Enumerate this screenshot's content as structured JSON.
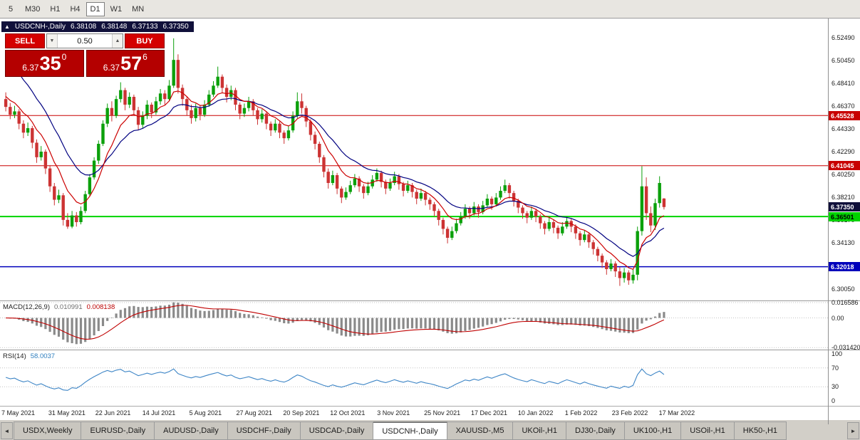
{
  "colors": {
    "candle_up": "#0ba00b",
    "candle_down": "#cc3333",
    "ma_fast": "#cc0000",
    "ma_slow": "#000080",
    "macd_hist": "#8a8a8a",
    "macd_signal": "#c00000",
    "rsi_line": "#3d85c6",
    "hline_red": "#c80000",
    "hline_green": "#00d400",
    "hline_blue": "#0000bb"
  },
  "timeframe_bar": {
    "buttons": [
      "5",
      "M30",
      "H1",
      "H4",
      "D1",
      "W1",
      "MN"
    ],
    "active": "D1"
  },
  "chart_header": {
    "symbol": "USDCNH-,Daily",
    "open": "6.38108",
    "high": "6.38148",
    "low": "6.37133",
    "close": "6.37350"
  },
  "trade_panel": {
    "sell_label": "SELL",
    "buy_label": "BUY",
    "volume": "0.50",
    "bid": {
      "big_figure": "6.37",
      "pips": "35",
      "point": "0"
    },
    "ask": {
      "big_figure": "6.37",
      "pips": "57",
      "point": "6"
    }
  },
  "price_axis": {
    "labels": [
      "6.52490",
      "6.50450",
      "6.48410",
      "6.46370",
      "6.44330",
      "6.42290",
      "6.40250",
      "6.38210",
      "6.36170",
      "6.34130",
      "6.32090",
      "6.30050"
    ],
    "tags": [
      {
        "text": "6.45528",
        "price": 6.45528,
        "bg": "#c80000",
        "fg": "#ffffff"
      },
      {
        "text": "6.41045",
        "price": 6.41045,
        "bg": "#c80000",
        "fg": "#ffffff"
      },
      {
        "text": "6.37350",
        "price": 6.3735,
        "bg": "#10103a",
        "fg": "#ffffff"
      },
      {
        "text": "6.36501",
        "price": 6.36501,
        "bg": "#00d400",
        "fg": "#000000"
      },
      {
        "text": "6.32018",
        "price": 6.32018,
        "bg": "#0000bb",
        "fg": "#ffffff"
      }
    ]
  },
  "hlines": [
    {
      "price": 6.45528,
      "color": "#c80000",
      "width": 1
    },
    {
      "price": 6.41045,
      "color": "#c80000",
      "width": 1
    },
    {
      "price": 6.36501,
      "color": "#00d400",
      "width": 2
    },
    {
      "price": 6.32018,
      "color": "#0000bb",
      "width": 1.5
    }
  ],
  "macd_panel": {
    "label": "MACD(12,26,9)",
    "value_main": "0.010991",
    "value_signal": "0.008138",
    "scale_max": 0.0166,
    "scale_min": -0.0314,
    "axis_labels": [
      {
        "text": "0.016586",
        "value": 0.0152
      },
      {
        "text": "0.00",
        "value": 0
      },
      {
        "text": "-0.031420",
        "value": -0.0295
      }
    ]
  },
  "rsi_panel": {
    "label": "RSI(14)",
    "value": "58.0037",
    "axis_labels": [
      {
        "text": "100",
        "value": 100
      },
      {
        "text": "70",
        "value": 70
      },
      {
        "text": "30",
        "value": 30
      },
      {
        "text": "0",
        "value": 0
      }
    ],
    "levels": [
      30,
      70
    ]
  },
  "date_axis": {
    "labels": [
      "7 May 2021",
      "31 May 2021",
      "22 Jun 2021",
      "14 Jul 2021",
      "5 Aug 2021",
      "27 Aug 2021",
      "20 Sep 2021",
      "12 Oct 2021",
      "3 Nov 2021",
      "25 Nov 2021",
      "17 Dec 2021",
      "10 Jan 2022",
      "1 Feb 2022",
      "23 Feb 2022",
      "17 Mar 2022"
    ]
  },
  "tab_bar": {
    "left_arrow": "◄",
    "right_arrow": "►",
    "active": "USDCNH-,Daily",
    "tabs": [
      "USDX,Weekly",
      "EURUSD-,Daily",
      "AUDUSD-,Daily",
      "USDCHF-,Daily",
      "USDCAD-,Daily",
      "USDCNH-,Daily",
      "XAUUSD-,M5",
      "UKOil-,H1",
      "DJ30-,Daily",
      "UK100-,H1",
      "USOil-,H1",
      "HK50-,H1"
    ]
  },
  "chart_data": {
    "type": "candlestick",
    "symbol": "USDCNH-",
    "timeframe": "Daily",
    "visible_range": [
      "7 May 2021",
      "17 Mar 2022"
    ],
    "price_scale": {
      "min": 6.29,
      "max": 6.542
    },
    "candles": [
      [
        6.47,
        6.476,
        6.459,
        6.463
      ],
      [
        6.463,
        6.4665,
        6.452,
        6.456
      ],
      [
        6.456,
        6.464,
        6.453,
        6.459
      ],
      [
        6.459,
        6.461,
        6.443,
        6.448
      ],
      [
        6.448,
        6.451,
        6.435,
        6.44
      ],
      [
        6.44,
        6.449,
        6.437,
        6.444
      ],
      [
        6.444,
        6.446,
        6.426,
        6.431
      ],
      [
        6.431,
        6.434,
        6.413,
        6.418
      ],
      [
        6.418,
        6.428,
        6.415,
        6.423
      ],
      [
        6.423,
        6.425,
        6.403,
        6.408
      ],
      [
        6.408,
        6.411,
        6.387,
        6.392
      ],
      [
        6.392,
        6.395,
        6.375,
        6.38
      ],
      [
        6.38,
        6.389,
        6.377,
        6.384
      ],
      [
        6.384,
        6.386,
        6.357,
        6.362
      ],
      [
        6.362,
        6.368,
        6.354,
        6.356
      ],
      [
        6.356,
        6.37,
        6.3545,
        6.366
      ],
      [
        6.366,
        6.369,
        6.356,
        6.36
      ],
      [
        6.36,
        6.374,
        6.358,
        6.37
      ],
      [
        6.37,
        6.388,
        6.368,
        6.385
      ],
      [
        6.385,
        6.403,
        6.383,
        6.4
      ],
      [
        6.4,
        6.418,
        6.398,
        6.415
      ],
      [
        6.415,
        6.433,
        6.412,
        6.43
      ],
      [
        6.43,
        6.451,
        6.428,
        6.448
      ],
      [
        6.448,
        6.466,
        6.445,
        6.462
      ],
      [
        6.462,
        6.468,
        6.45,
        6.455
      ],
      [
        6.455,
        6.473,
        6.453,
        6.47
      ],
      [
        6.47,
        6.485,
        6.467,
        6.478
      ],
      [
        6.478,
        6.48,
        6.46,
        6.465
      ],
      [
        6.465,
        6.476,
        6.462,
        6.472
      ],
      [
        6.472,
        6.474,
        6.455,
        6.46
      ],
      [
        6.46,
        6.463,
        6.442,
        6.447
      ],
      [
        6.447,
        6.459,
        6.444,
        6.455
      ],
      [
        6.455,
        6.469,
        6.452,
        6.465
      ],
      [
        6.465,
        6.467,
        6.453,
        6.458
      ],
      [
        6.458,
        6.472,
        6.456,
        6.468
      ],
      [
        6.468,
        6.479,
        6.465,
        6.475
      ],
      [
        6.475,
        6.478,
        6.465,
        6.47
      ],
      [
        6.47,
        6.487,
        6.468,
        6.482
      ],
      [
        6.482,
        6.5243,
        6.48,
        6.505
      ],
      [
        6.505,
        6.51,
        6.475,
        6.48
      ],
      [
        6.48,
        6.483,
        6.464,
        6.47
      ],
      [
        6.47,
        6.472,
        6.455,
        6.46
      ],
      [
        6.46,
        6.465,
        6.448,
        6.453
      ],
      [
        6.453,
        6.466,
        6.45,
        6.462
      ],
      [
        6.462,
        6.464,
        6.451,
        6.456
      ],
      [
        6.456,
        6.469,
        6.454,
        6.465
      ],
      [
        6.465,
        6.478,
        6.463,
        6.474
      ],
      [
        6.474,
        6.486,
        6.472,
        6.482
      ],
      [
        6.482,
        6.499,
        6.48,
        6.49
      ],
      [
        6.49,
        6.492,
        6.475,
        6.48
      ],
      [
        6.48,
        6.483,
        6.467,
        6.472
      ],
      [
        6.472,
        6.482,
        6.469,
        6.478
      ],
      [
        6.478,
        6.48,
        6.46,
        6.465
      ],
      [
        6.465,
        6.467,
        6.452,
        6.457
      ],
      [
        6.457,
        6.466,
        6.454,
        6.462
      ],
      [
        6.462,
        6.472,
        6.459,
        6.468
      ],
      [
        6.468,
        6.47,
        6.455,
        6.46
      ],
      [
        6.46,
        6.462,
        6.447,
        6.452
      ],
      [
        6.452,
        6.461,
        6.449,
        6.457
      ],
      [
        6.457,
        6.459,
        6.443,
        6.448
      ],
      [
        6.448,
        6.45,
        6.437,
        6.442
      ],
      [
        6.442,
        6.452,
        6.44,
        6.448
      ],
      [
        6.448,
        6.45,
        6.435,
        6.44
      ],
      [
        6.44,
        6.442,
        6.43,
        6.435
      ],
      [
        6.435,
        6.446,
        6.433,
        6.442
      ],
      [
        6.442,
        6.459,
        6.44,
        6.455
      ],
      [
        6.455,
        6.476,
        6.453,
        6.468
      ],
      [
        6.468,
        6.475,
        6.457,
        6.462
      ],
      [
        6.462,
        6.464,
        6.445,
        6.45
      ],
      [
        6.45,
        6.452,
        6.433,
        6.438
      ],
      [
        6.438,
        6.441,
        6.425,
        6.43
      ],
      [
        6.43,
        6.432,
        6.413,
        6.418
      ],
      [
        6.418,
        6.42,
        6.4,
        6.405
      ],
      [
        6.405,
        6.408,
        6.39,
        6.395
      ],
      [
        6.395,
        6.406,
        6.393,
        6.402
      ],
      [
        6.402,
        6.404,
        6.385,
        6.39
      ],
      [
        6.39,
        6.392,
        6.377,
        6.382
      ],
      [
        6.382,
        6.391,
        6.38,
        6.387
      ],
      [
        6.387,
        6.397,
        6.385,
        6.393
      ],
      [
        6.393,
        6.403,
        6.391,
        6.399
      ],
      [
        6.399,
        6.401,
        6.387,
        6.392
      ],
      [
        6.392,
        6.394,
        6.381,
        6.386
      ],
      [
        6.386,
        6.396,
        6.384,
        6.392
      ],
      [
        6.392,
        6.402,
        6.39,
        6.398
      ],
      [
        6.398,
        6.408,
        6.396,
        6.404
      ],
      [
        6.404,
        6.406,
        6.391,
        6.396
      ],
      [
        6.396,
        6.398,
        6.385,
        6.39
      ],
      [
        6.39,
        6.399,
        6.388,
        6.395
      ],
      [
        6.395,
        6.405,
        6.393,
        6.401
      ],
      [
        6.401,
        6.403,
        6.389,
        6.394
      ],
      [
        6.394,
        6.396,
        6.383,
        6.388
      ],
      [
        6.388,
        6.397,
        6.386,
        6.393
      ],
      [
        6.393,
        6.395,
        6.382,
        6.387
      ],
      [
        6.387,
        6.389,
        6.376,
        6.381
      ],
      [
        6.381,
        6.39,
        6.379,
        6.386
      ],
      [
        6.386,
        6.388,
        6.375,
        6.38
      ],
      [
        6.38,
        6.382,
        6.371,
        6.376
      ],
      [
        6.376,
        6.378,
        6.365,
        6.37
      ],
      [
        6.37,
        6.372,
        6.357,
        6.362
      ],
      [
        6.362,
        6.364,
        6.349,
        6.354
      ],
      [
        6.354,
        6.356,
        6.341,
        6.346
      ],
      [
        6.346,
        6.356,
        6.344,
        6.352
      ],
      [
        6.352,
        6.363,
        6.35,
        6.359
      ],
      [
        6.359,
        6.369,
        6.357,
        6.365
      ],
      [
        6.365,
        6.376,
        6.363,
        6.372
      ],
      [
        6.372,
        6.374,
        6.363,
        6.368
      ],
      [
        6.368,
        6.378,
        6.366,
        6.374
      ],
      [
        6.374,
        6.376,
        6.364,
        6.369
      ],
      [
        6.369,
        6.379,
        6.367,
        6.375
      ],
      [
        6.375,
        6.385,
        6.373,
        6.381
      ],
      [
        6.381,
        6.383,
        6.371,
        6.376
      ],
      [
        6.376,
        6.386,
        6.374,
        6.382
      ],
      [
        6.382,
        6.392,
        6.38,
        6.388
      ],
      [
        6.388,
        6.398,
        6.386,
        6.393
      ],
      [
        6.393,
        6.395,
        6.381,
        6.386
      ],
      [
        6.386,
        6.388,
        6.374,
        6.379
      ],
      [
        6.379,
        6.381,
        6.368,
        6.373
      ],
      [
        6.373,
        6.375,
        6.363,
        6.368
      ],
      [
        6.368,
        6.37,
        6.359,
        6.364
      ],
      [
        6.364,
        6.374,
        6.362,
        6.37
      ],
      [
        6.37,
        6.372,
        6.36,
        6.365
      ],
      [
        6.365,
        6.367,
        6.354,
        6.359
      ],
      [
        6.359,
        6.361,
        6.349,
        6.354
      ],
      [
        6.354,
        6.364,
        6.352,
        6.36
      ],
      [
        6.36,
        6.362,
        6.35,
        6.355
      ],
      [
        6.355,
        6.357,
        6.345,
        6.35
      ],
      [
        6.35,
        6.36,
        6.348,
        6.356
      ],
      [
        6.356,
        6.365,
        6.354,
        6.361
      ],
      [
        6.361,
        6.363,
        6.351,
        6.356
      ],
      [
        6.356,
        6.358,
        6.345,
        6.35
      ],
      [
        6.35,
        6.352,
        6.339,
        6.344
      ],
      [
        6.344,
        6.353,
        6.342,
        6.349
      ],
      [
        6.349,
        6.351,
        6.337,
        6.342
      ],
      [
        6.342,
        6.344,
        6.331,
        6.336
      ],
      [
        6.336,
        6.338,
        6.325,
        6.33
      ],
      [
        6.33,
        6.332,
        6.319,
        6.324
      ],
      [
        6.324,
        6.326,
        6.313,
        6.318
      ],
      [
        6.318,
        6.327,
        6.316,
        6.323
      ],
      [
        6.323,
        6.325,
        6.311,
        6.316
      ],
      [
        6.316,
        6.32,
        6.303,
        6.31
      ],
      [
        6.31,
        6.319,
        6.306,
        6.315
      ],
      [
        6.315,
        6.317,
        6.304,
        6.308
      ],
      [
        6.308,
        6.318,
        6.305,
        6.313
      ],
      [
        6.313,
        6.356,
        6.308,
        6.352
      ],
      [
        6.352,
        6.41,
        6.348,
        6.392
      ],
      [
        6.392,
        6.4,
        6.362,
        6.368
      ],
      [
        6.368,
        6.374,
        6.351,
        6.357
      ],
      [
        6.357,
        6.381,
        6.353,
        6.377
      ],
      [
        6.377,
        6.401,
        6.373,
        6.395
      ],
      [
        6.3811,
        6.3815,
        6.3713,
        6.3735
      ]
    ]
  }
}
